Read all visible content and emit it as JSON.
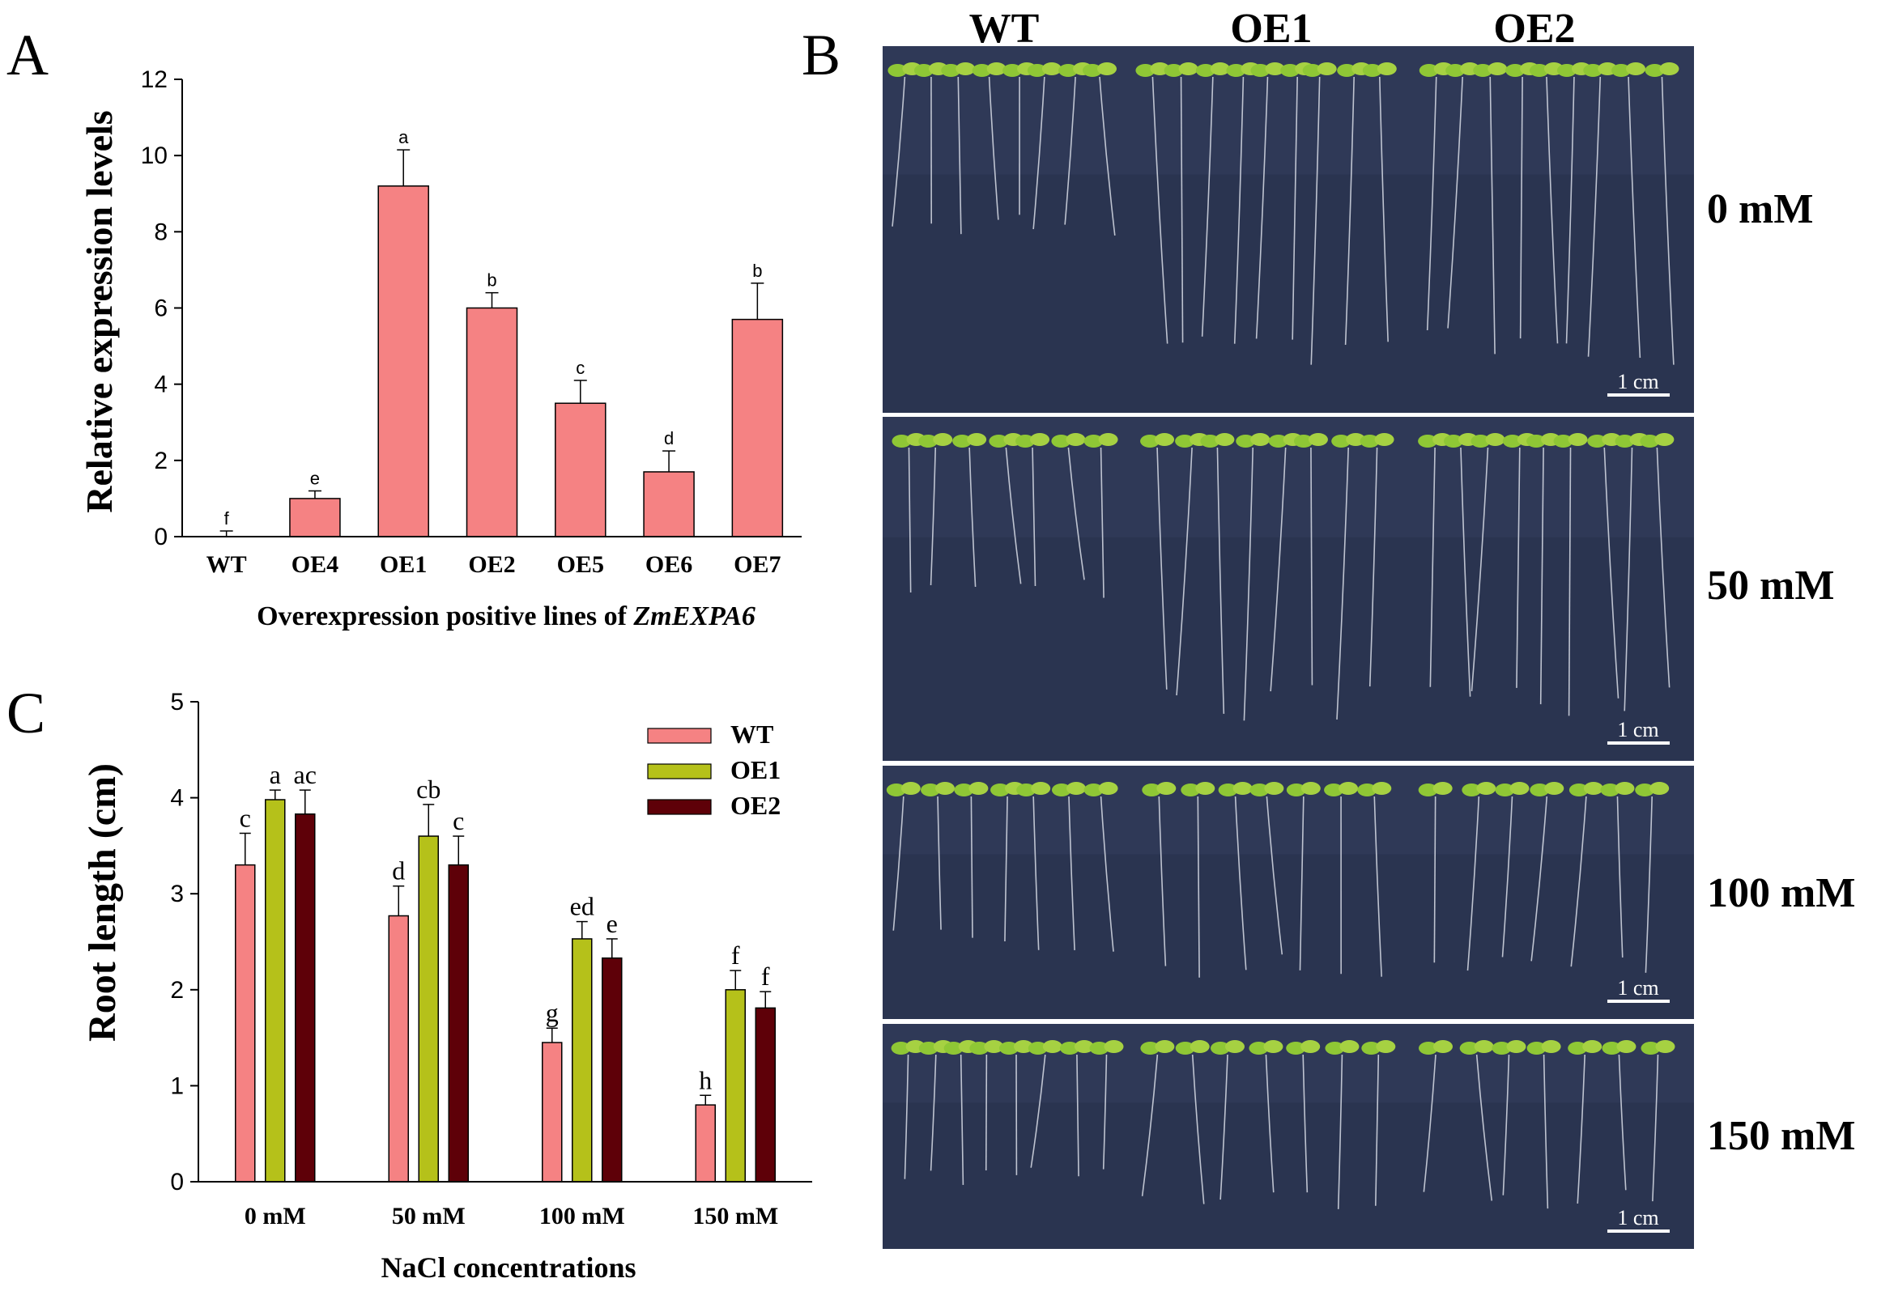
{
  "panels": {
    "A": "A",
    "B": "B",
    "C": "C"
  },
  "colors": {
    "bar_A": "#f58283",
    "WT": "#f58283",
    "OE1": "#b5c11a",
    "OE2": "#5e0008",
    "plate_bg": "#2a3450",
    "seedling": "#8fc735",
    "root": "#d8dde6"
  },
  "chart_data": [
    {
      "id": "A",
      "type": "bar",
      "ylabel": "Relative expression levels",
      "xlabel_prefix": "Overexpression positive lines of ",
      "xlabel_italic": "ZmEXPA6",
      "ylim": [
        0,
        12
      ],
      "yticks": [
        "0",
        "2",
        "4",
        "6",
        "8",
        "10",
        "12"
      ],
      "categories": [
        "WT",
        "OE4",
        "OE1",
        "OE2",
        "OE5",
        "OE6",
        "OE7"
      ],
      "values": [
        0.0,
        1.0,
        9.2,
        6.0,
        3.5,
        1.7,
        5.7
      ],
      "errors": [
        0.15,
        0.2,
        0.95,
        0.4,
        0.6,
        0.55,
        0.95
      ],
      "letters": [
        "f",
        "e",
        "a",
        "b",
        "c",
        "d",
        "b"
      ],
      "grid": false
    },
    {
      "id": "C",
      "type": "bar",
      "ylabel": "Root length (cm)",
      "xlabel": "NaCl concentrations",
      "ylim": [
        0,
        5
      ],
      "yticks": [
        "0",
        "1",
        "2",
        "3",
        "4",
        "5"
      ],
      "categories": [
        "0 mM",
        "50 mM",
        "100 mM",
        "150 mM"
      ],
      "legend_position": "top-right",
      "series": [
        {
          "name": "WT",
          "values": [
            3.3,
            2.77,
            1.45,
            0.8
          ],
          "errors": [
            0.33,
            0.31,
            0.15,
            0.1
          ],
          "letters": [
            "c",
            "d",
            "g",
            "h"
          ]
        },
        {
          "name": "OE1",
          "values": [
            3.98,
            3.6,
            2.53,
            2.0
          ],
          "errors": [
            0.1,
            0.33,
            0.18,
            0.2
          ],
          "letters": [
            "a",
            "cb",
            "ed",
            "f"
          ]
        },
        {
          "name": "OE2",
          "values": [
            3.83,
            3.3,
            2.33,
            1.81
          ],
          "errors": [
            0.25,
            0.3,
            0.2,
            0.17
          ],
          "letters": [
            "ac",
            "c",
            "e",
            "f"
          ]
        }
      ],
      "grid": false
    }
  ],
  "photo": {
    "columns": [
      "WT",
      "OE1",
      "OE2"
    ],
    "rows": [
      "0 mM",
      "50 mM",
      "100 mM",
      "150 mM"
    ],
    "scale_label": "1 cm"
  }
}
